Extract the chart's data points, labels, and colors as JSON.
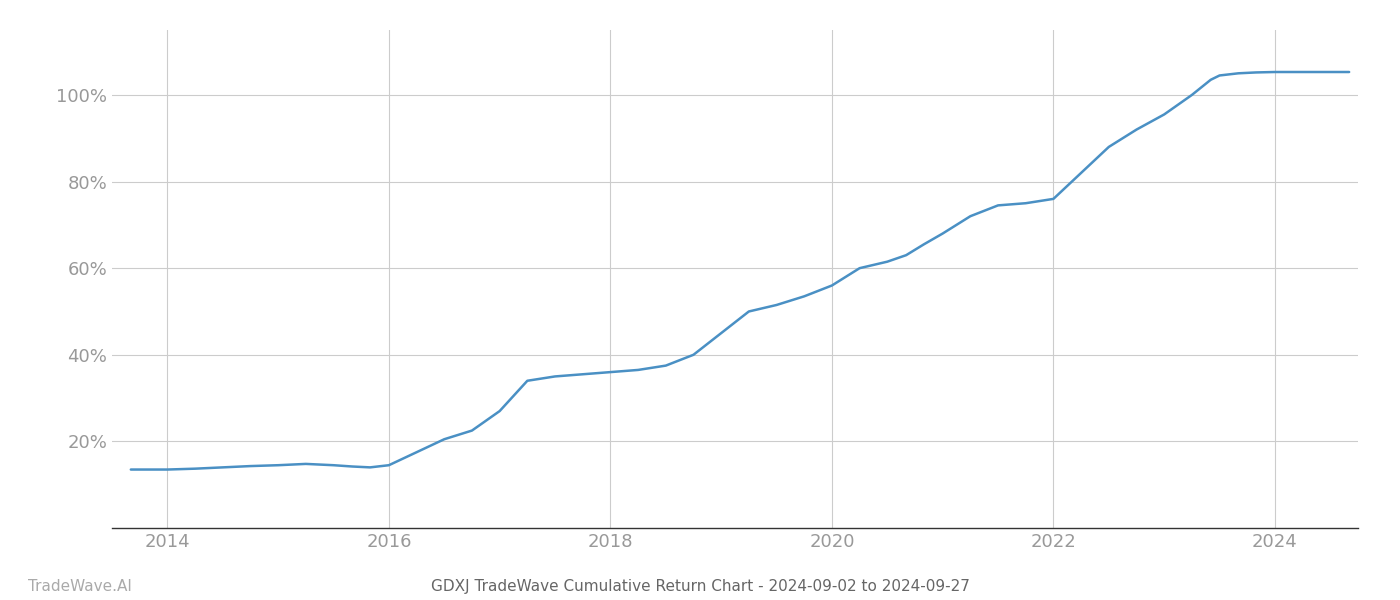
{
  "title": "GDXJ TradeWave Cumulative Return Chart - 2024-09-02 to 2024-09-27",
  "watermark": "TradeWave.AI",
  "line_color": "#4a90c4",
  "background_color": "#ffffff",
  "grid_color": "#cccccc",
  "x_values": [
    2013.67,
    2013.83,
    2014.0,
    2014.25,
    2014.5,
    2014.75,
    2015.0,
    2015.25,
    2015.5,
    2015.67,
    2015.83,
    2016.0,
    2016.25,
    2016.5,
    2016.75,
    2017.0,
    2017.25,
    2017.5,
    2017.75,
    2018.0,
    2018.25,
    2018.5,
    2018.75,
    2019.0,
    2019.25,
    2019.5,
    2019.75,
    2020.0,
    2020.25,
    2020.5,
    2020.67,
    2020.83,
    2021.0,
    2021.25,
    2021.5,
    2021.75,
    2022.0,
    2022.25,
    2022.5,
    2022.75,
    2023.0,
    2023.25,
    2023.42,
    2023.5,
    2023.67,
    2023.83,
    2024.0,
    2024.25,
    2024.5,
    2024.67
  ],
  "y_values": [
    13.5,
    13.5,
    13.5,
    13.7,
    14.0,
    14.3,
    14.5,
    14.8,
    14.5,
    14.2,
    14.0,
    14.5,
    17.5,
    20.5,
    22.5,
    27.0,
    34.0,
    35.0,
    35.5,
    36.0,
    36.5,
    37.5,
    40.0,
    45.0,
    50.0,
    51.5,
    53.5,
    56.0,
    60.0,
    61.5,
    63.0,
    65.5,
    68.0,
    72.0,
    74.5,
    75.0,
    76.0,
    82.0,
    88.0,
    92.0,
    95.5,
    100.0,
    103.5,
    104.5,
    105.0,
    105.2,
    105.3,
    105.3,
    105.3,
    105.3
  ],
  "xlim": [
    2013.5,
    2024.75
  ],
  "ylim": [
    0,
    115
  ],
  "yticks": [
    20,
    40,
    60,
    80,
    100
  ],
  "xticks": [
    2014,
    2016,
    2018,
    2020,
    2022,
    2024
  ],
  "tick_label_color": "#999999",
  "line_width": 1.8,
  "title_fontsize": 11,
  "tick_fontsize": 13,
  "watermark_fontsize": 11,
  "watermark_color": "#aaaaaa",
  "title_color": "#666666"
}
